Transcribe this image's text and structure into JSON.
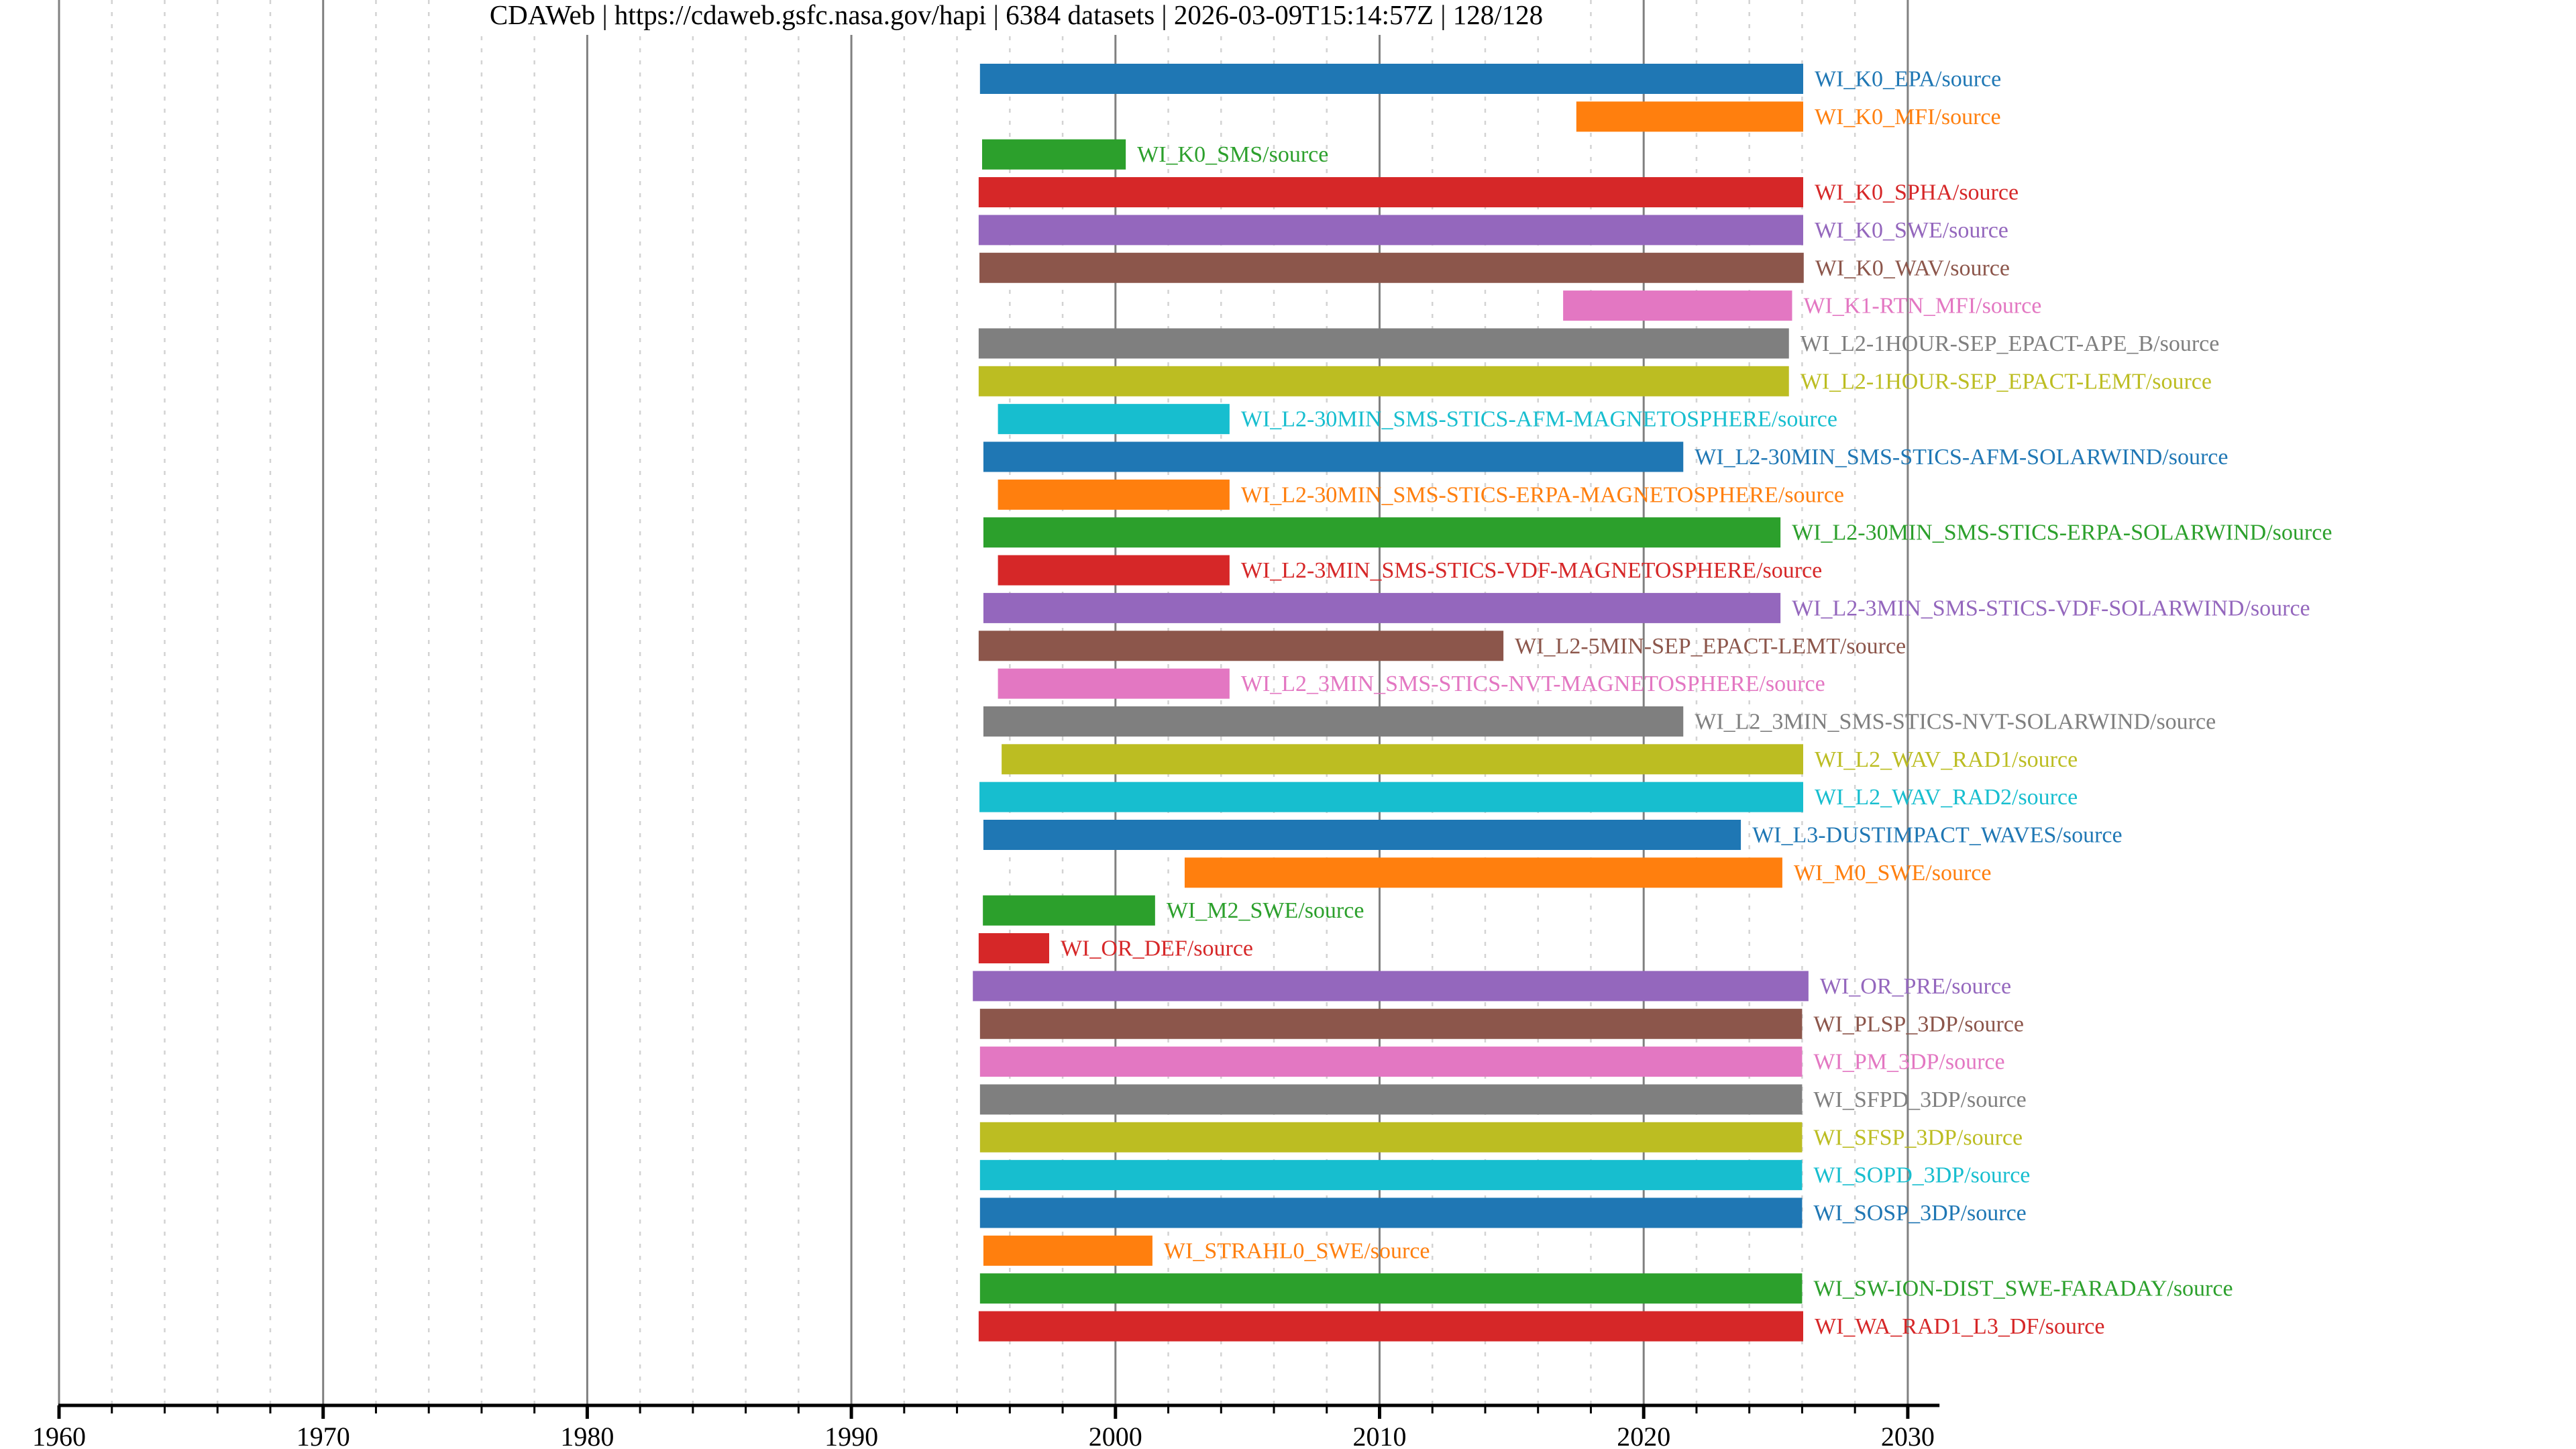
{
  "chart_data": {
    "type": "bar",
    "orientation": "horizontal-timeline",
    "title": "CDAWeb | https://cdaweb.gsfc.nasa.gov/hapi | 6384 datasets | 2026-03-09T15:14:57Z | 128/128",
    "xlabel": "",
    "ylabel": "",
    "xlim": [
      1960,
      2031.2
    ],
    "x_ticks": [
      "1960",
      "1970",
      "1980",
      "1990",
      "2000",
      "2010",
      "2020",
      "2030"
    ],
    "x_tick_values": [
      1960,
      1970,
      1980,
      1990,
      2000,
      2010,
      2020,
      2030
    ],
    "minor_tick_step": 2,
    "grid": {
      "major": true,
      "minor": true,
      "minor_style": "dashed"
    },
    "legend": "none (labels at bar ends)",
    "palette": [
      "#1f77b4",
      "#ff7f0e",
      "#2ca02c",
      "#d62728",
      "#9467bd",
      "#8c564b",
      "#e377c2",
      "#7f7f7f",
      "#bcbd22",
      "#17becf"
    ],
    "series": [
      {
        "name": "WI_K0_EPA/source",
        "start": 1994.87,
        "stop": 2026.04
      },
      {
        "name": "WI_K0_MFI/source",
        "start": 2017.45,
        "stop": 2026.04
      },
      {
        "name": "WI_K0_SMS/source",
        "start": 1994.95,
        "stop": 2000.39
      },
      {
        "name": "WI_K0_SPHA/source",
        "start": 1994.82,
        "stop": 2026.04
      },
      {
        "name": "WI_K0_SWE/source",
        "start": 1994.82,
        "stop": 2026.04
      },
      {
        "name": "WI_K0_WAV/source",
        "start": 1994.85,
        "stop": 2026.06
      },
      {
        "name": "WI_K1-RTN_MFI/source",
        "start": 2016.95,
        "stop": 2025.62
      },
      {
        "name": "WI_L2-1HOUR-SEP_EPACT-APE_B/source",
        "start": 1994.82,
        "stop": 2025.5
      },
      {
        "name": "WI_L2-1HOUR-SEP_EPACT-LEMT/source",
        "start": 1994.82,
        "stop": 2025.5
      },
      {
        "name": "WI_L2-30MIN_SMS-STICS-AFM-MAGNETOSPHERE/source",
        "start": 1995.55,
        "stop": 2004.32
      },
      {
        "name": "WI_L2-30MIN_SMS-STICS-AFM-SOLARWIND/source",
        "start": 1995.0,
        "stop": 2021.5
      },
      {
        "name": "WI_L2-30MIN_SMS-STICS-ERPA-MAGNETOSPHERE/source",
        "start": 1995.55,
        "stop": 2004.32
      },
      {
        "name": "WI_L2-30MIN_SMS-STICS-ERPA-SOLARWIND/source",
        "start": 1995.0,
        "stop": 2025.18
      },
      {
        "name": "WI_L2-3MIN_SMS-STICS-VDF-MAGNETOSPHERE/source",
        "start": 1995.55,
        "stop": 2004.32
      },
      {
        "name": "WI_L2-3MIN_SMS-STICS-VDF-SOLARWIND/source",
        "start": 1995.0,
        "stop": 2025.18
      },
      {
        "name": "WI_L2-5MIN-SEP_EPACT-LEMT/source",
        "start": 1994.82,
        "stop": 2014.69
      },
      {
        "name": "WI_L2_3MIN_SMS-STICS-NVT-MAGNETOSPHERE/source",
        "start": 1995.55,
        "stop": 2004.32
      },
      {
        "name": "WI_L2_3MIN_SMS-STICS-NVT-SOLARWIND/source",
        "start": 1995.0,
        "stop": 2021.5
      },
      {
        "name": "WI_L2_WAV_RAD1/source",
        "start": 1995.69,
        "stop": 2026.04
      },
      {
        "name": "WI_L2_WAV_RAD2/source",
        "start": 1994.85,
        "stop": 2026.04
      },
      {
        "name": "WI_L3-DUSTIMPACT_WAVES/source",
        "start": 1995.0,
        "stop": 2023.68
      },
      {
        "name": "WI_M0_SWE/source",
        "start": 2002.62,
        "stop": 2025.25
      },
      {
        "name": "WI_M2_SWE/source",
        "start": 1994.98,
        "stop": 2001.5
      },
      {
        "name": "WI_OR_DEF/source",
        "start": 1994.82,
        "stop": 1997.49
      },
      {
        "name": "WI_OR_PRE/source",
        "start": 1994.6,
        "stop": 2026.24
      },
      {
        "name": "WI_PLSP_3DP/source",
        "start": 1994.87,
        "stop": 2026.0
      },
      {
        "name": "WI_PM_3DP/source",
        "start": 1994.87,
        "stop": 2026.0
      },
      {
        "name": "WI_SFPD_3DP/source",
        "start": 1994.87,
        "stop": 2026.0
      },
      {
        "name": "WI_SFSP_3DP/source",
        "start": 1994.87,
        "stop": 2026.0
      },
      {
        "name": "WI_SOPD_3DP/source",
        "start": 1994.87,
        "stop": 2026.0
      },
      {
        "name": "WI_SOSP_3DP/source",
        "start": 1994.87,
        "stop": 2026.0
      },
      {
        "name": "WI_STRAHL0_SWE/source",
        "start": 1995.0,
        "stop": 2001.4
      },
      {
        "name": "WI_SW-ION-DIST_SWE-FARADAY/source",
        "start": 1994.87,
        "stop": 2026.0
      },
      {
        "name": "WI_WA_RAD1_L3_DF/source",
        "start": 1994.82,
        "stop": 2026.04
      }
    ]
  }
}
